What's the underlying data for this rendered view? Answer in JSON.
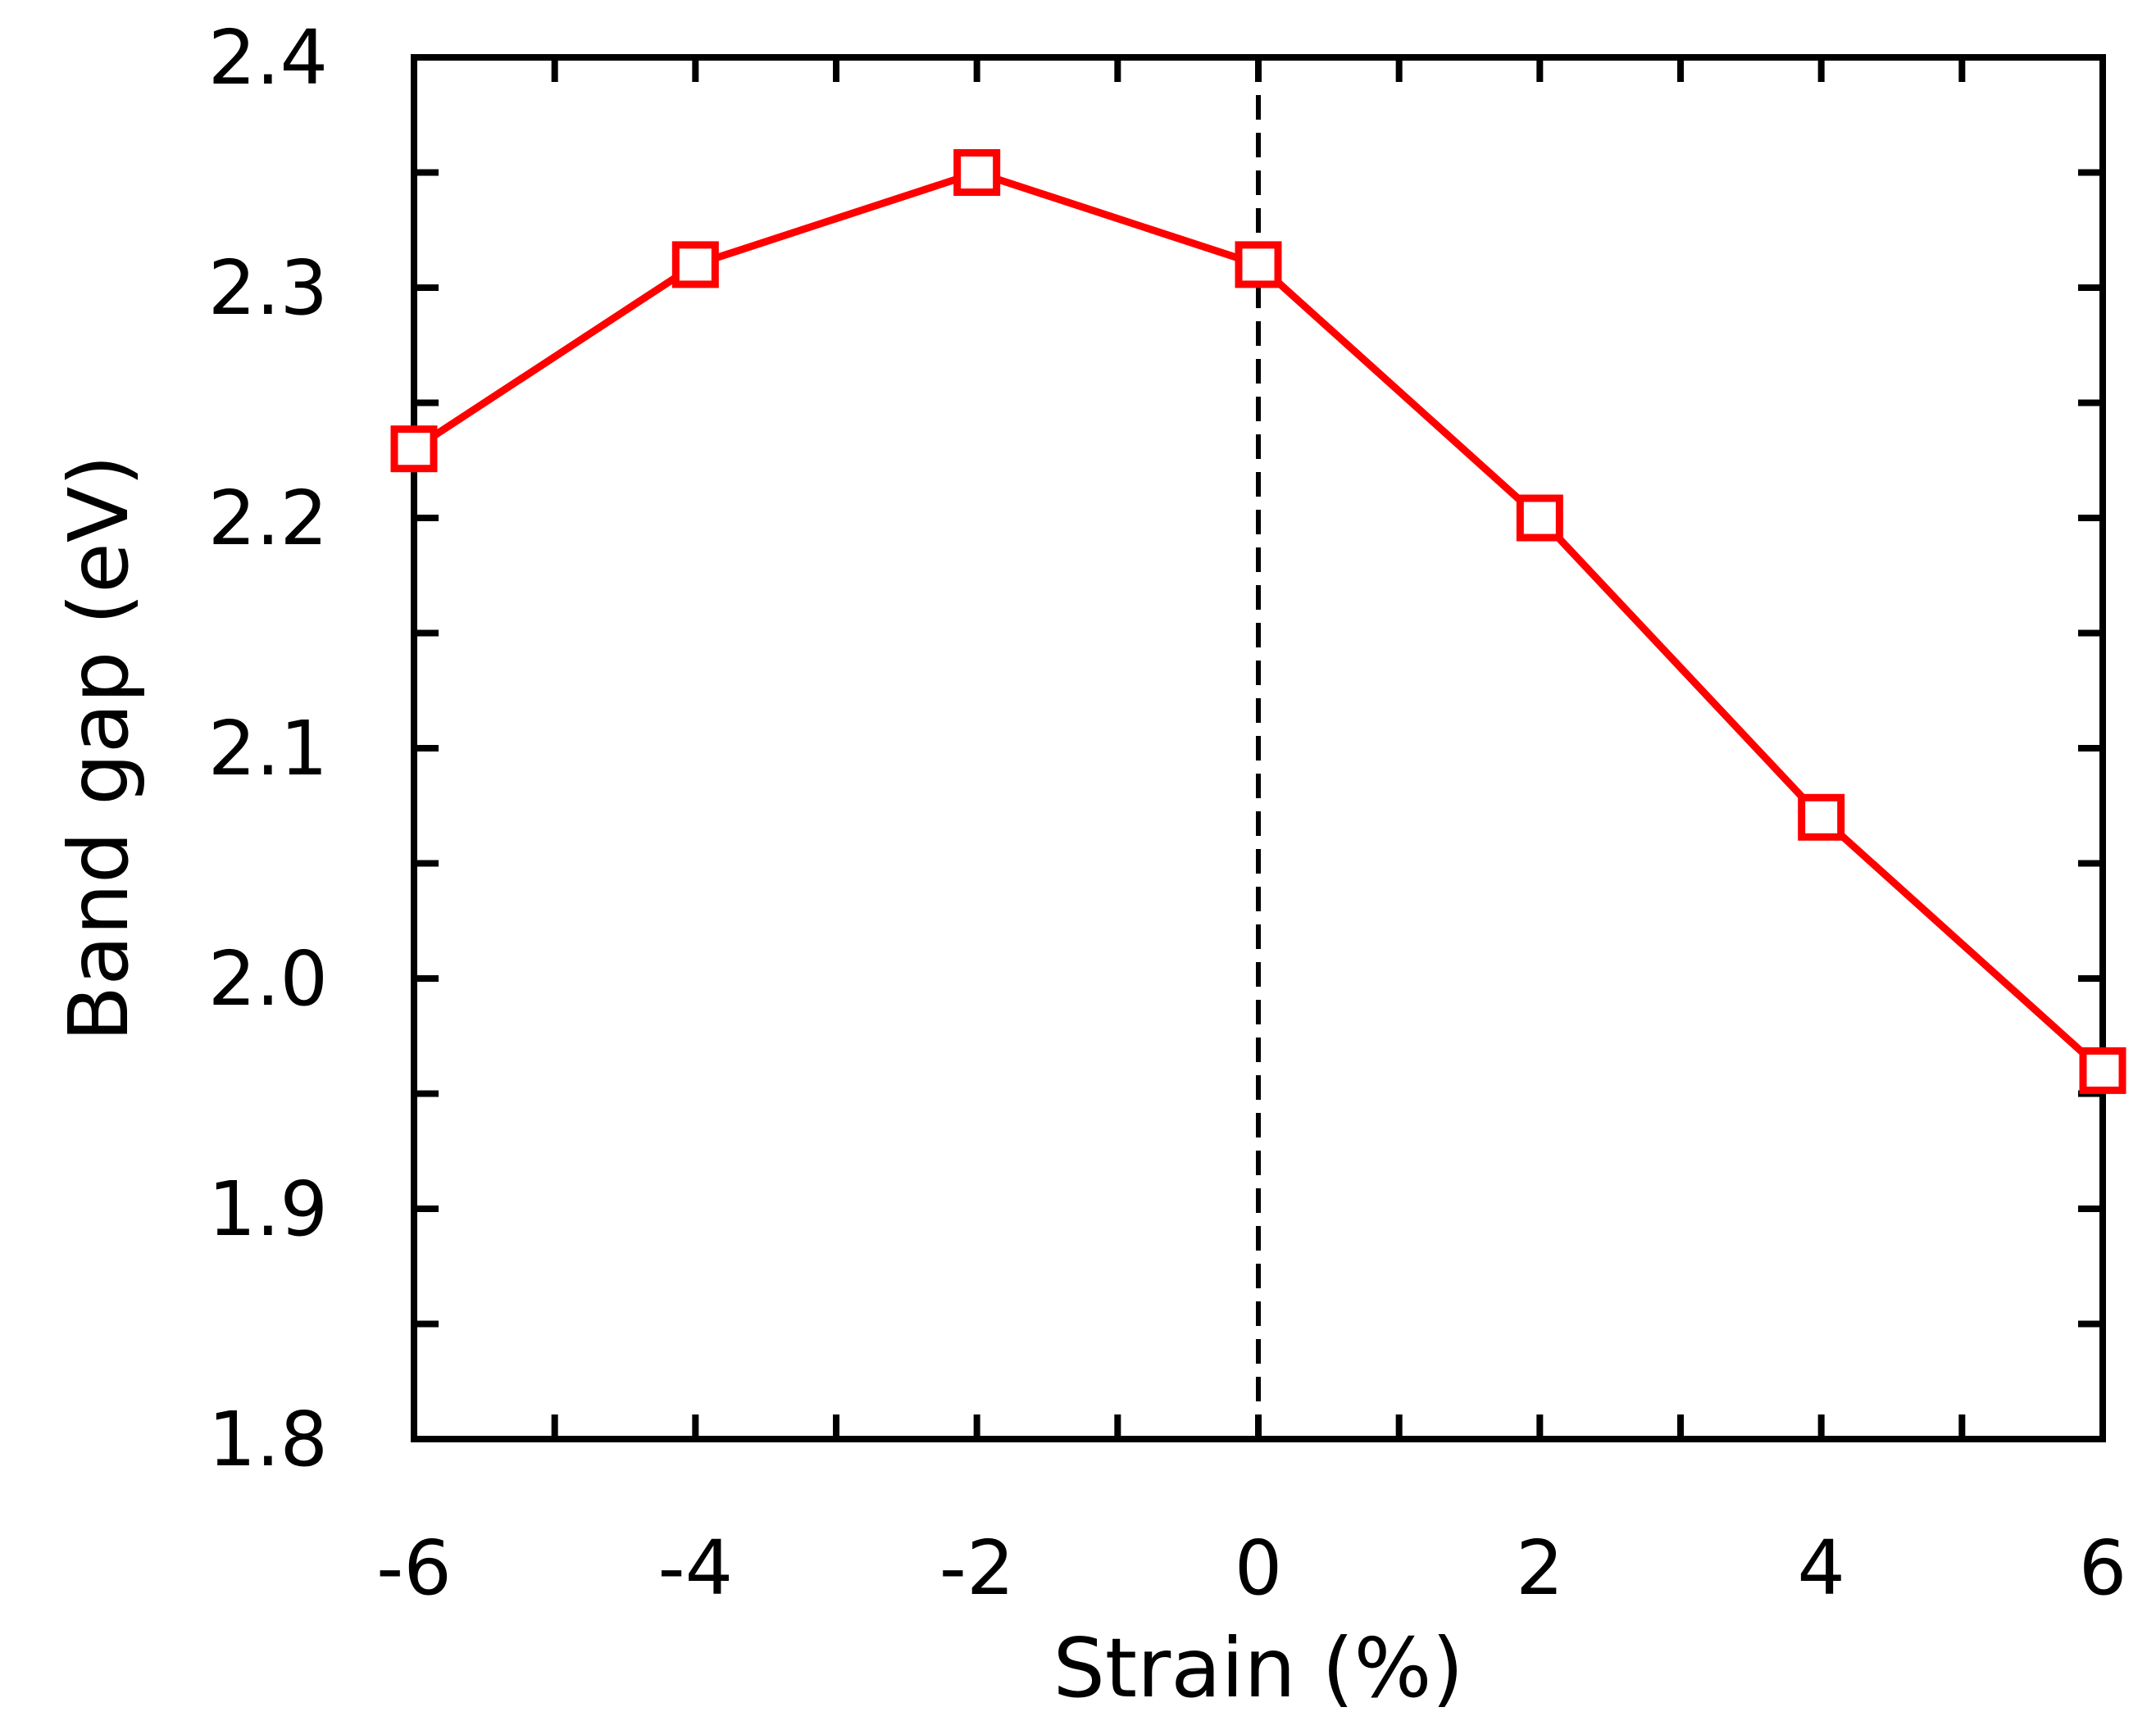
{
  "chart_data": {
    "type": "line",
    "xlabel": "Strain (%)",
    "ylabel": "Band gap (eV)",
    "xlim": [
      -6,
      6
    ],
    "ylim": [
      1.8,
      2.4
    ],
    "x_ticks": [
      "-6",
      "-4",
      "-2",
      "0",
      "2",
      "4",
      "6"
    ],
    "y_ticks": [
      "1.8",
      "1.9",
      "2.0",
      "2.1",
      "2.2",
      "2.3",
      "2.4"
    ],
    "grid": false,
    "legend": "none",
    "reference_line": {
      "x": 0,
      "style": "dashed",
      "color": "#000000"
    },
    "series": [
      {
        "color": "#ff0000",
        "marker": "open-square",
        "x": [
          -6,
          -4,
          -2,
          0,
          2,
          4,
          6
        ],
        "y": [
          2.23,
          2.31,
          2.35,
          2.31,
          2.2,
          2.07,
          1.96
        ]
      }
    ]
  }
}
